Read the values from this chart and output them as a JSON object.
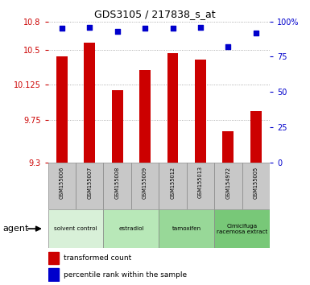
{
  "title": "GDS3105 / 217838_s_at",
  "samples": [
    "GSM155006",
    "GSM155007",
    "GSM155008",
    "GSM155009",
    "GSM155012",
    "GSM155013",
    "GSM154972",
    "GSM155005"
  ],
  "bar_values": [
    10.43,
    10.57,
    10.07,
    10.28,
    10.46,
    10.39,
    9.63,
    9.85
  ],
  "percentile_values": [
    95,
    96,
    93,
    95,
    95,
    96,
    82,
    92
  ],
  "ylim_left": [
    9.3,
    10.8
  ],
  "ylim_right": [
    0,
    100
  ],
  "yticks_left": [
    9.3,
    9.75,
    10.125,
    10.5,
    10.8
  ],
  "ytick_labels_left": [
    "9.3",
    "9.75",
    "10.125",
    "10.5",
    "10.8"
  ],
  "yticks_right": [
    0,
    25,
    50,
    75,
    100
  ],
  "ytick_labels_right": [
    "0",
    "25",
    "50",
    "75",
    "100%"
  ],
  "bar_color": "#cc0000",
  "dot_color": "#0000cc",
  "agent_groups": [
    {
      "label": "solvent control",
      "start": 0,
      "end": 2,
      "color": "#d8f0d8"
    },
    {
      "label": "estradiol",
      "start": 2,
      "end": 4,
      "color": "#b8e8b8"
    },
    {
      "label": "tamoxifen",
      "start": 4,
      "end": 6,
      "color": "#98d898"
    },
    {
      "label": "Cimicifuga\nracemosa extract",
      "start": 6,
      "end": 8,
      "color": "#78c878"
    }
  ],
  "agent_label": "agent",
  "legend_bar_label": "transformed count",
  "legend_dot_label": "percentile rank within the sample",
  "grid_color": "#999999",
  "bg_color": "#ffffff",
  "plot_bg": "#ffffff",
  "tick_color_left": "#cc0000",
  "tick_color_right": "#0000cc",
  "sample_bg_color": "#c8c8c8"
}
